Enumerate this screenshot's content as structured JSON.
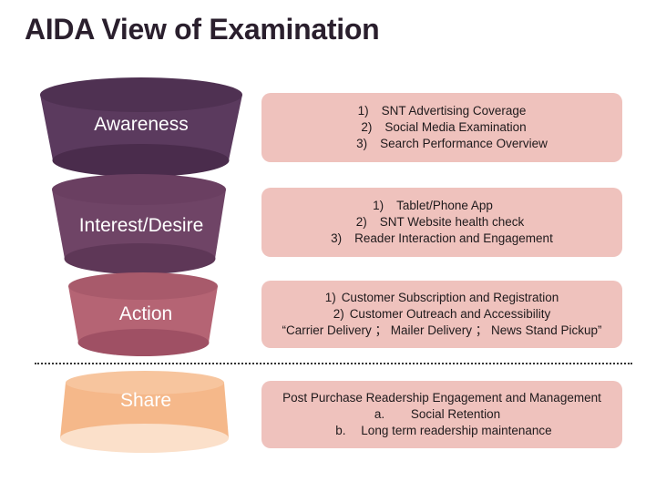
{
  "title": "AIDA View of Examination",
  "colors": {
    "awareness": "#5b3a5e",
    "interest": "#6f4466",
    "action": "#b56474",
    "share": "#f5b88a",
    "box": "#efc2bd"
  },
  "stages": [
    {
      "label": "Awareness",
      "items": [
        {
          "num": "1)",
          "text": "SNT Advertising Coverage"
        },
        {
          "num": "2)",
          "text": "Social Media Examination"
        },
        {
          "num": "3)",
          "text": "Search Performance Overview"
        }
      ]
    },
    {
      "label": "Interest/Desire",
      "items": [
        {
          "num": "1)",
          "text": "Tablet/Phone App"
        },
        {
          "num": "2)",
          "text": "SNT Website health check"
        },
        {
          "num": "3)",
          "text": "Reader Interaction and Engagement"
        }
      ]
    },
    {
      "label": "Action",
      "items": [
        {
          "num": "1)",
          "text": "Customer Subscription and Registration"
        },
        {
          "num": "2)",
          "text": "Customer Outreach and Accessibility"
        },
        {
          "num": "",
          "text": "“Carrier Delivery ； Mailer Delivery ； News Stand Pickup”"
        }
      ]
    },
    {
      "label": "Share",
      "heading": "Post Purchase Readership Engagement and Management",
      "items": [
        {
          "num": "a.",
          "text": "Social Retention"
        },
        {
          "num": "b.",
          "text": "Long term readership maintenance"
        }
      ]
    }
  ]
}
